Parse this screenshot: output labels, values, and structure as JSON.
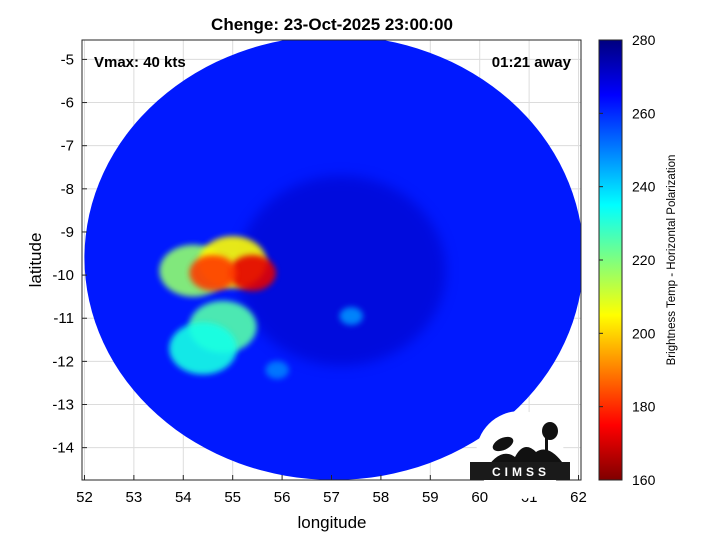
{
  "chart_data": {
    "type": "heatmap",
    "title": "Chenge: 23-Oct-2025 23:00:00",
    "xlabel": "longitude",
    "ylabel": "latitude",
    "xlim": [
      51.95,
      62.05
    ],
    "ylim": [
      -14.75,
      -4.55
    ],
    "x_ticks": [
      "52",
      "53",
      "54",
      "55",
      "56",
      "57",
      "58",
      "59",
      "60",
      "61",
      "62"
    ],
    "y_ticks": [
      "-5",
      "-6",
      "-7",
      "-8",
      "-9",
      "-10",
      "-11",
      "-12",
      "-13",
      "-14"
    ],
    "grid": true,
    "annotations": {
      "vmax": "Vmax: 40 kts",
      "away": "01:21 away"
    },
    "swath": {
      "center": [
        57.05,
        -9.6
      ],
      "radius_lon": 5.05,
      "radius_lat": 5.15,
      "background_tb": 262
    },
    "features": [
      {
        "name": "inner core",
        "lon": 57.2,
        "lat": -9.9,
        "tb": 272
      },
      {
        "name": "convective cluster",
        "lon": 54.2,
        "lat": -9.9,
        "tb": 218
      },
      {
        "name": "convective cluster",
        "lon": 55.0,
        "lat": -9.7,
        "tb": 205
      },
      {
        "name": "coldest core",
        "lon": 55.4,
        "lat": -9.95,
        "tb": 172
      },
      {
        "name": "coldest core",
        "lon": 54.6,
        "lat": -9.95,
        "tb": 182
      },
      {
        "name": "trailing convection",
        "lon": 54.8,
        "lat": -11.2,
        "tb": 225
      },
      {
        "name": "trailing convection",
        "lon": 54.4,
        "lat": -11.7,
        "tb": 232
      },
      {
        "name": "isolated cell",
        "lon": 57.4,
        "lat": -10.95,
        "tb": 248
      },
      {
        "name": "isolated cell",
        "lon": 55.9,
        "lat": -12.2,
        "tb": 250
      }
    ],
    "colorbar": {
      "label": "Brightness Temp - Horizontal Polarization",
      "range": [
        160,
        280
      ],
      "ticks": [
        "280",
        "260",
        "240",
        "220",
        "200",
        "180",
        "160"
      ],
      "colormap": [
        "#00007f",
        "#0000ff",
        "#007fff",
        "#00ffff",
        "#7fff7f",
        "#ffff00",
        "#ff7f00",
        "#ff0000",
        "#7f0000"
      ]
    },
    "logo": "CIMSS"
  }
}
